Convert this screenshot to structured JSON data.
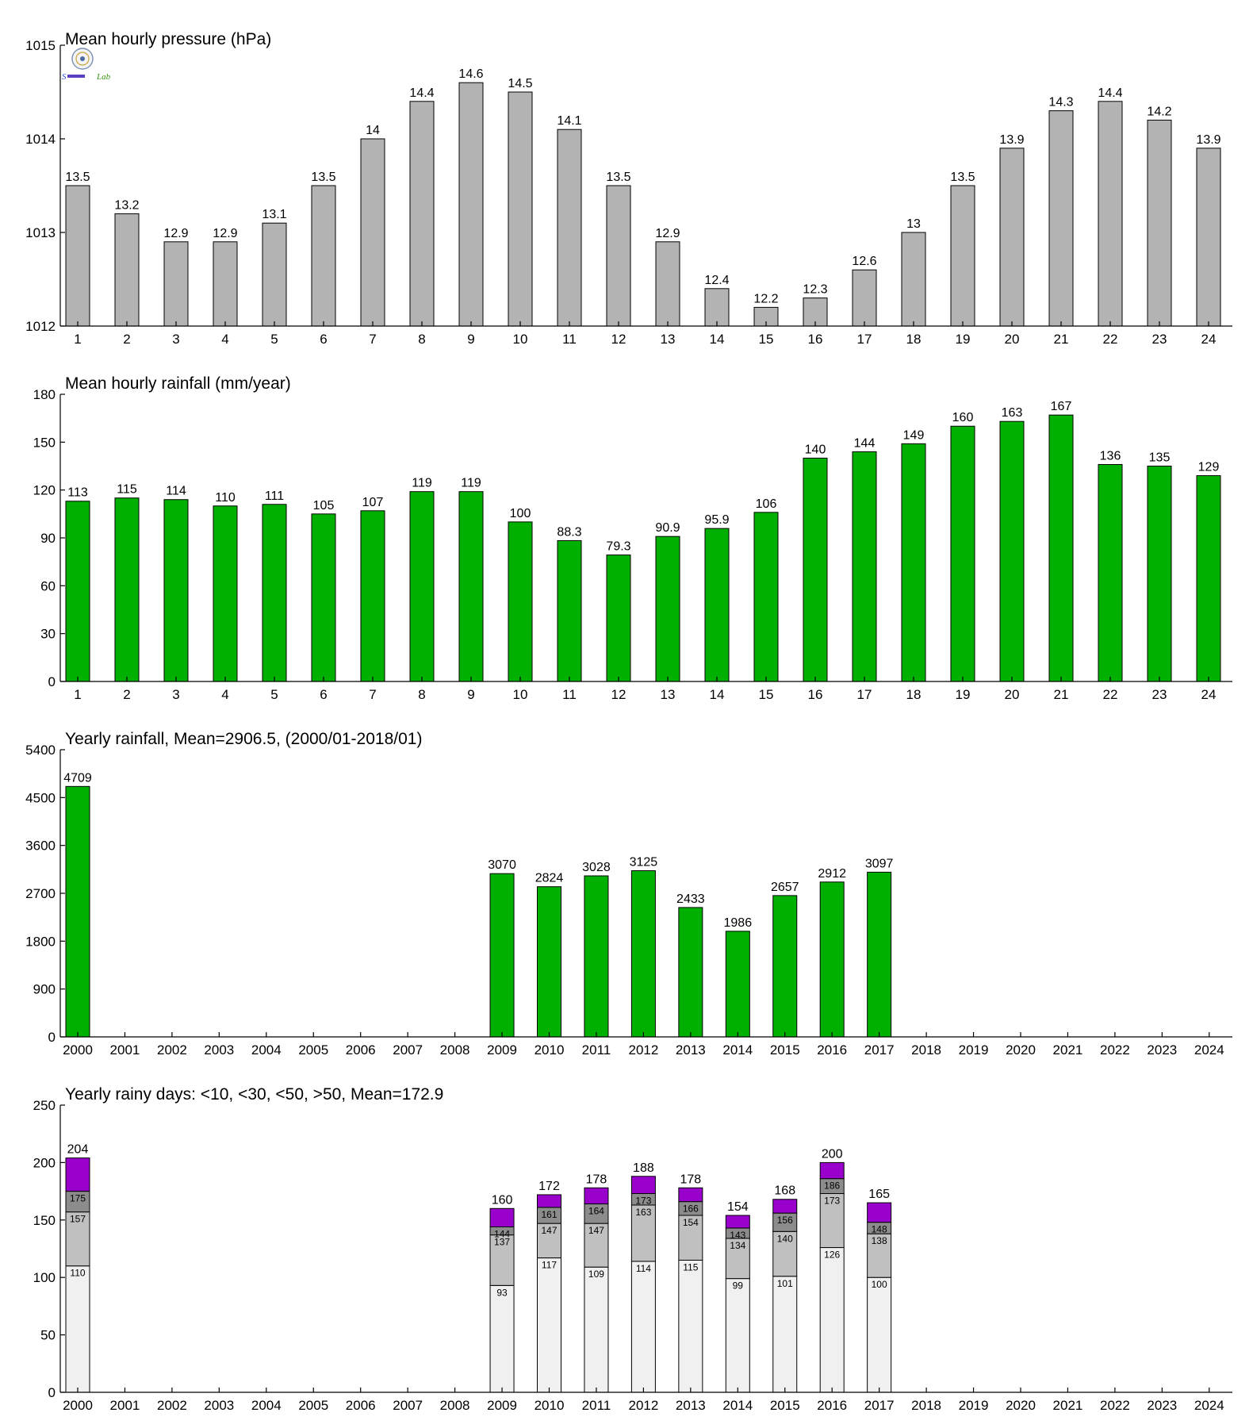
{
  "colors": {
    "pressure_bar": "#b3b3b3",
    "rain_bar": "#00b000",
    "days_lt10": "#f0f0f0",
    "days_lt30": "#c0c0c0",
    "days_lt50": "#8c8c8c",
    "days_gt50": "#9900cc"
  },
  "logo_icon": "lab-logo-icon",
  "chart_data": [
    {
      "id": "pressure",
      "type": "bar",
      "title": "Mean hourly pressure (hPa)",
      "xlabel": "",
      "ylabel": "",
      "categories": [
        "1",
        "2",
        "3",
        "4",
        "5",
        "6",
        "7",
        "8",
        "9",
        "10",
        "11",
        "12",
        "13",
        "14",
        "15",
        "16",
        "17",
        "18",
        "19",
        "20",
        "21",
        "22",
        "23",
        "24"
      ],
      "values": [
        1013.5,
        1013.2,
        1012.9,
        1012.9,
        1013.1,
        1013.5,
        1014.0,
        1014.4,
        1014.6,
        1014.5,
        1014.1,
        1013.5,
        1012.9,
        1012.4,
        1012.2,
        1012.3,
        1012.6,
        1013.0,
        1013.5,
        1013.9,
        1014.3,
        1014.4,
        1014.2,
        1013.9
      ],
      "labels": [
        "13.5",
        "13.2",
        "12.9",
        "12.9",
        "13.1",
        "13.5",
        "14",
        "14.4",
        "14.6",
        "14.5",
        "14.1",
        "13.5",
        "12.9",
        "12.4",
        "12.2",
        "12.3",
        "12.6",
        "13",
        "13.5",
        "13.9",
        "14.3",
        "14.4",
        "14.2",
        "13.9"
      ],
      "ylim": [
        1012,
        1015
      ],
      "yticks": [
        1012,
        1013,
        1014,
        1015
      ],
      "grid": false
    },
    {
      "id": "hourly_rain",
      "type": "bar",
      "title": "Mean hourly rainfall (mm/year)",
      "xlabel": "",
      "ylabel": "",
      "categories": [
        "1",
        "2",
        "3",
        "4",
        "5",
        "6",
        "7",
        "8",
        "9",
        "10",
        "11",
        "12",
        "13",
        "14",
        "15",
        "16",
        "17",
        "18",
        "19",
        "20",
        "21",
        "22",
        "23",
        "24"
      ],
      "values": [
        113,
        115,
        114,
        110,
        111,
        105,
        107,
        119,
        119,
        100,
        88.3,
        79.3,
        90.9,
        95.9,
        106,
        140,
        144,
        149,
        160,
        163,
        167,
        136,
        135,
        129
      ],
      "labels": [
        "113",
        "115",
        "114",
        "110",
        "111",
        "105",
        "107",
        "119",
        "119",
        "100",
        "88.3",
        "79.3",
        "90.9",
        "95.9",
        "106",
        "140",
        "144",
        "149",
        "160",
        "163",
        "167",
        "136",
        "135",
        "129"
      ],
      "ylim": [
        0,
        180
      ],
      "yticks": [
        0,
        30,
        60,
        90,
        120,
        150,
        180
      ],
      "grid": false
    },
    {
      "id": "yearly_rain",
      "type": "bar",
      "title": "Yearly rainfall, Mean=2906.5, (2000/01-2018/01)",
      "xlabel": "",
      "ylabel": "",
      "categories": [
        "2000",
        "2001",
        "2002",
        "2003",
        "2004",
        "2005",
        "2006",
        "2007",
        "2008",
        "2009",
        "2010",
        "2011",
        "2012",
        "2013",
        "2014",
        "2015",
        "2016",
        "2017",
        "2018",
        "2019",
        "2020",
        "2021",
        "2022",
        "2023",
        "2024"
      ],
      "values": [
        4709,
        null,
        null,
        null,
        null,
        null,
        null,
        null,
        null,
        3070,
        2824,
        3028,
        3125,
        2433,
        1986,
        2657,
        2912,
        3097,
        null,
        null,
        null,
        null,
        null,
        null,
        null
      ],
      "labels": [
        "4709",
        "",
        "",
        "",
        "",
        "",
        "",
        "",
        "",
        "3070",
        "2824",
        "3028",
        "3125",
        "2433",
        "1986",
        "2657",
        "2912",
        "3097",
        "",
        "",
        "",
        "",
        "",
        "",
        ""
      ],
      "ylim": [
        0,
        5400
      ],
      "yticks": [
        0,
        900,
        1800,
        2700,
        3600,
        4500,
        5400
      ],
      "grid": false
    },
    {
      "id": "rainy_days",
      "type": "bar",
      "stacked": true,
      "title": "Yearly rainy days: <10, <30, <50, >50, Mean=172.9",
      "xlabel": "",
      "ylabel": "",
      "categories": [
        "2000",
        "2001",
        "2002",
        "2003",
        "2004",
        "2005",
        "2006",
        "2007",
        "2008",
        "2009",
        "2010",
        "2011",
        "2012",
        "2013",
        "2014",
        "2015",
        "2016",
        "2017",
        "2018",
        "2019",
        "2020",
        "2021",
        "2022",
        "2023",
        "2024"
      ],
      "cumulative": [
        [
          110,
          157,
          175,
          204
        ],
        null,
        null,
        null,
        null,
        null,
        null,
        null,
        null,
        [
          93,
          137,
          144,
          160
        ],
        [
          117,
          147,
          161,
          172
        ],
        [
          109,
          147,
          164,
          178
        ],
        [
          114,
          163,
          173,
          188
        ],
        [
          115,
          154,
          166,
          178
        ],
        [
          99,
          134,
          143,
          154
        ],
        [
          101,
          140,
          156,
          168
        ],
        [
          126,
          173,
          186,
          200
        ],
        [
          100,
          138,
          148,
          165
        ],
        null,
        null,
        null,
        null,
        null,
        null,
        null
      ],
      "ylim": [
        0,
        250
      ],
      "yticks": [
        0,
        50,
        100,
        150,
        200,
        250
      ],
      "grid": false
    }
  ]
}
